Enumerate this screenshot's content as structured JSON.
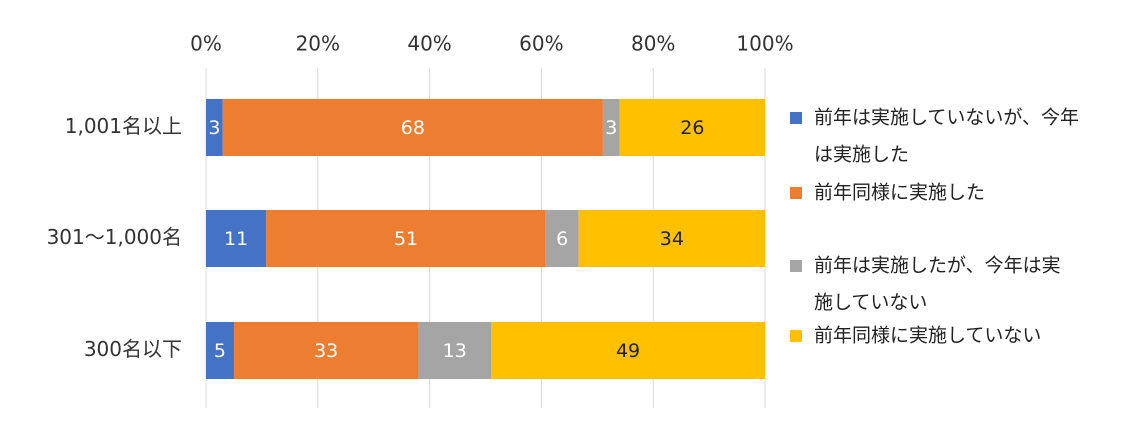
{
  "chart_data": {
    "type": "bar",
    "orientation": "horizontal",
    "stacked": true,
    "normalized_percent": true,
    "categories": [
      "1,001名以上",
      "301～1,000名",
      "300名以下"
    ],
    "series": [
      {
        "name": "前年は実施していないが、今年は実施した",
        "legend_lines": [
          "前年は実施していないが、今年",
          "は実施した"
        ],
        "values": [
          3,
          11,
          5
        ],
        "color": "#4472C4",
        "label_color": "#ffffff"
      },
      {
        "name": "前年同様に実施した",
        "legend_lines": [
          "前年同様に実施した"
        ],
        "values": [
          68,
          51,
          33
        ],
        "color": "#ED7D31",
        "label_color": "#ffffff"
      },
      {
        "name": "前年は実施したが、今年は実施していない",
        "legend_lines": [
          "前年は実施したが、今年は実",
          "施していない"
        ],
        "values": [
          3,
          6,
          13
        ],
        "color": "#A5A5A5",
        "label_color": "#ffffff"
      },
      {
        "name": "前年同様に実施していない",
        "legend_lines": [
          "前年同様に実施していない"
        ],
        "values": [
          26,
          34,
          49
        ],
        "color": "#FFC000",
        "label_color": "#222222"
      }
    ],
    "x_ticks": [
      "0%",
      "20%",
      "40%",
      "60%",
      "80%",
      "100%"
    ],
    "xlim": [
      0,
      100
    ],
    "x_axis_position": "top",
    "grid": true,
    "legend_position": "right",
    "title": "",
    "xlabel": "",
    "ylabel": ""
  }
}
